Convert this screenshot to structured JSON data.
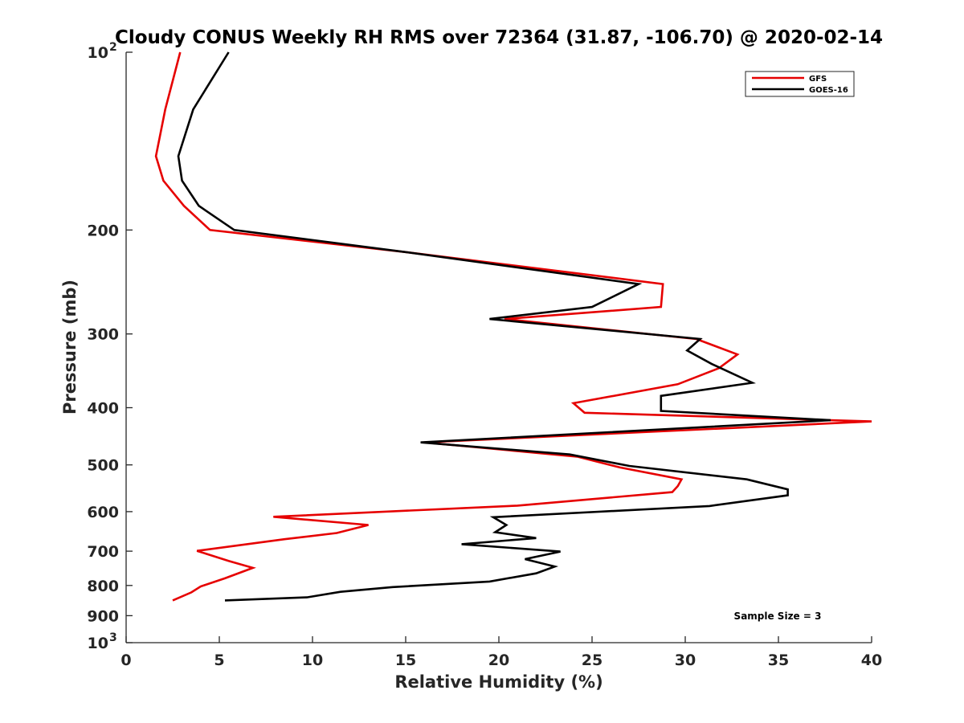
{
  "chart_data": {
    "type": "line",
    "title": "Cloudy CONUS Weekly RH RMS over 72364 (31.87, -106.70) @ 2020-02-14",
    "xlabel": "Relative Humidity (%)",
    "ylabel": "Pressure (mb)",
    "xlim": [
      0,
      40
    ],
    "ylim": [
      100,
      1000
    ],
    "y_scale": "log",
    "y_reversed": true,
    "x_ticks": [
      "0",
      "5",
      "10",
      "15",
      "20",
      "25",
      "30",
      "35",
      "40"
    ],
    "y_ticks": [
      {
        "value": 100,
        "base": "10",
        "exp": "2"
      },
      {
        "value": 200,
        "label": "200"
      },
      {
        "value": 300,
        "label": "300"
      },
      {
        "value": 400,
        "label": "400"
      },
      {
        "value": 500,
        "label": "500"
      },
      {
        "value": 600,
        "label": "600"
      },
      {
        "value": 700,
        "label": "700"
      },
      {
        "value": 800,
        "label": "800"
      },
      {
        "value": 900,
        "label": "900"
      },
      {
        "value": 1000,
        "base": "10",
        "exp": "3"
      }
    ],
    "grid": false,
    "legend_position": "top-right",
    "series": [
      {
        "name": "GFS",
        "color": "#e60000",
        "points": [
          [
            2.9,
            100
          ],
          [
            2.1,
            125
          ],
          [
            1.6,
            150
          ],
          [
            2.0,
            165
          ],
          [
            3.1,
            182
          ],
          [
            4.5,
            200
          ],
          [
            15.0,
            218
          ],
          [
            28.8,
            247
          ],
          [
            28.7,
            270
          ],
          [
            20.3,
            283
          ],
          [
            30.6,
            306
          ],
          [
            32.8,
            325
          ],
          [
            31.8,
            343
          ],
          [
            29.6,
            365
          ],
          [
            24.0,
            393
          ],
          [
            24.6,
            408
          ],
          [
            40.0,
            422
          ],
          [
            16.0,
            458
          ],
          [
            24.2,
            484
          ],
          [
            26.5,
            505
          ],
          [
            29.8,
            529
          ],
          [
            29.6,
            543
          ],
          [
            29.3,
            556
          ],
          [
            21.0,
            586
          ],
          [
            7.9,
            612
          ],
          [
            13.0,
            632
          ],
          [
            11.3,
            652
          ],
          [
            8.5,
            668
          ],
          [
            3.8,
            699
          ],
          [
            5.5,
            727
          ],
          [
            6.8,
            747
          ],
          [
            5.3,
            778
          ],
          [
            4.0,
            803
          ],
          [
            3.5,
            822
          ],
          [
            2.5,
            848
          ]
        ]
      },
      {
        "name": "GOES-16",
        "color": "#000000",
        "points": [
          [
            5.5,
            100
          ],
          [
            3.6,
            125
          ],
          [
            2.8,
            150
          ],
          [
            3.0,
            165
          ],
          [
            3.9,
            182
          ],
          [
            5.8,
            200
          ],
          [
            15.0,
            218
          ],
          [
            27.5,
            247
          ],
          [
            25.0,
            270
          ],
          [
            19.5,
            283
          ],
          [
            30.8,
            306
          ],
          [
            30.1,
            320
          ],
          [
            31.4,
            337
          ],
          [
            33.6,
            363
          ],
          [
            28.7,
            382
          ],
          [
            28.7,
            405
          ],
          [
            37.8,
            420
          ],
          [
            15.8,
            458
          ],
          [
            23.8,
            480
          ],
          [
            27.0,
            502
          ],
          [
            33.3,
            529
          ],
          [
            35.5,
            550
          ],
          [
            35.5,
            563
          ],
          [
            31.3,
            587
          ],
          [
            19.7,
            613
          ],
          [
            20.4,
            632
          ],
          [
            19.8,
            650
          ],
          [
            22.0,
            665
          ],
          [
            18.0,
            681
          ],
          [
            23.3,
            701
          ],
          [
            21.4,
            722
          ],
          [
            23.0,
            743
          ],
          [
            22.0,
            763
          ],
          [
            19.5,
            788
          ],
          [
            14.3,
            805
          ],
          [
            11.5,
            820
          ],
          [
            9.7,
            838
          ],
          [
            5.3,
            848
          ]
        ]
      }
    ],
    "annotations": [
      "Sample Size = 3"
    ]
  }
}
